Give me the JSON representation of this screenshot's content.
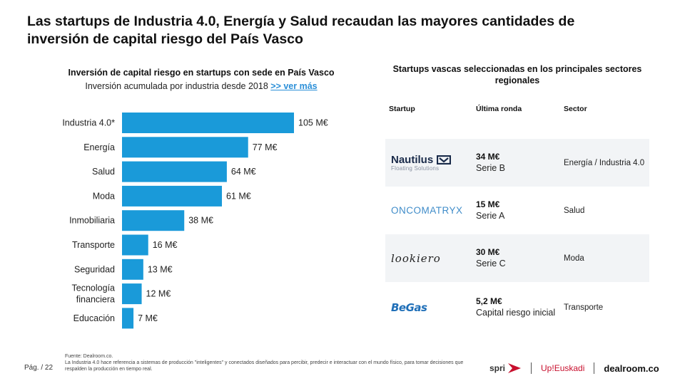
{
  "title": "Las startups de Industria 4.0, Energía y Salud recaudan las mayores cantidades de inversión de capital riesgo del País Vasco",
  "chart": {
    "title": "Inversión de capital riesgo en startups con sede en País Vasco",
    "subtitle": "Inversión acumulada por industria desde 2018",
    "link": ">> ver más"
  },
  "chart_data": {
    "type": "bar",
    "orientation": "horizontal",
    "title": "Inversión de capital riesgo en startups con sede en País Vasco",
    "subtitle": "Inversión acumulada por industria desde 2018",
    "categories": [
      "Industria 4.0*",
      "Energía",
      "Salud",
      "Moda",
      "Inmobiliaria",
      "Transporte",
      "Seguridad",
      "Tecnología financiera",
      "Educación"
    ],
    "values": [
      105,
      77,
      64,
      61,
      38,
      16,
      13,
      12,
      7
    ],
    "value_labels": [
      "105 M€",
      "77 M€",
      "64 M€",
      "61 M€",
      "38 M€",
      "16 M€",
      "13 M€",
      "12 M€",
      "7 M€"
    ],
    "xlim": [
      0,
      105
    ],
    "grid": false,
    "bar_color": "#1a9ad9"
  },
  "table": {
    "title": "Startups vascas seleccionadas en los principales sectores regionales",
    "headers": {
      "startup": "Startup",
      "ronda": "Última ronda",
      "sector": "Sector"
    },
    "rows": [
      {
        "logo_name": "Nautilus",
        "logo_sub": "Floating Solutions",
        "amount": "34 M€",
        "serie": "Serie B",
        "sector": "Energía / Industria 4.0"
      },
      {
        "logo_name": "ONCOMATRYX",
        "amount": "15 M€",
        "serie": "Serie A",
        "sector": "Salud"
      },
      {
        "logo_name": "lookiero",
        "amount": "30 M€",
        "serie": "Serie C",
        "sector": "Moda"
      },
      {
        "logo_name": "BeGas",
        "amount": "5,2 M€",
        "serie": "Capital riesgo inicial",
        "sector": "Transporte"
      }
    ]
  },
  "footer": {
    "page": "Pág. / 22",
    "source": "Fuente: Dealroom.co.",
    "note": "La Industria 4.0 hace referencia a sistemas de producción \"inteligentes\" y conectados diseñados para percibir, predecir e interactuar con el mundo físico, para tomar decisiones que respalden la producción en tiempo real.",
    "logos": {
      "spri": "spri",
      "upeuskadi": "Up!Euskadi",
      "dealroom": "dealroom.co"
    }
  },
  "colors": {
    "bar": "#1a9ad9",
    "link": "#2b8fd8",
    "row_shade": "#f2f4f6"
  }
}
